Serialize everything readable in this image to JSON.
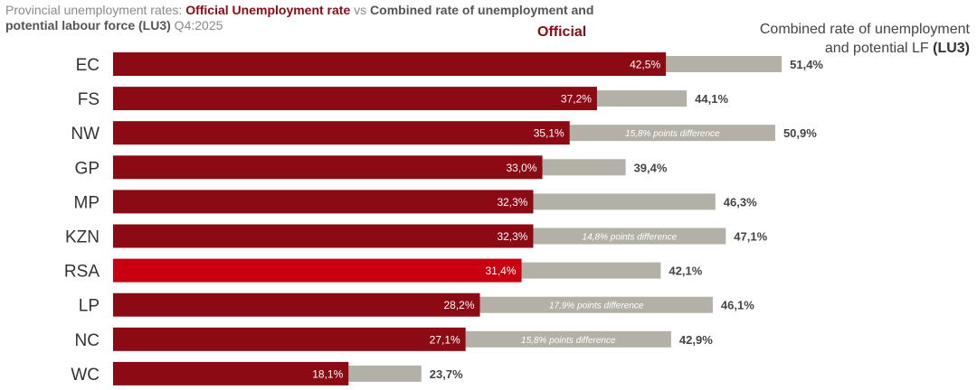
{
  "header": {
    "prefix": "Provincial unemployment rates: ",
    "official_label": "Official Unemployment rate",
    "vs": " vs ",
    "combined_label": "Combined rate of unemployment and potential labour force (LU3)",
    "period": " Q4:2025"
  },
  "legend": {
    "official": "Official",
    "combined_line1": "Combined rate of unemployment",
    "combined_line2_prefix": "and potential LF ",
    "combined_line2_bold": "(LU3)"
  },
  "colors": {
    "official": "#8b0a14",
    "official_highlight": "#c8000f",
    "combined": "#b3b0a8"
  },
  "chart_data": {
    "type": "bar",
    "orientation": "horizontal",
    "title": "Provincial unemployment rates: Official Unemployment rate vs Combined rate of unemployment and potential labour force (LU3) Q4:2025",
    "categories": [
      "EC",
      "FS",
      "NW",
      "GP",
      "MP",
      "KZN",
      "RSA",
      "LP",
      "NC",
      "WC"
    ],
    "highlight": "RSA",
    "series": [
      {
        "name": "Official",
        "values": [
          42.5,
          37.2,
          35.1,
          33.0,
          32.3,
          32.3,
          31.4,
          28.2,
          27.1,
          18.1
        ],
        "labels": [
          "42,5%",
          "37,2%",
          "35,1%",
          "33,0%",
          "32,3%",
          "32,3%",
          "31,4%",
          "28,2%",
          "27,1%",
          "18,1%"
        ]
      },
      {
        "name": "Combined rate of unemployment and potential LF (LU3)",
        "values": [
          51.4,
          44.1,
          50.9,
          39.4,
          46.3,
          47.1,
          42.1,
          46.1,
          42.9,
          23.7
        ],
        "labels": [
          "51,4%",
          "44,1%",
          "50,9%",
          "39,4%",
          "46,3%",
          "47,1%",
          "42,1%",
          "46,1%",
          "42,9%",
          "23,7%"
        ]
      }
    ],
    "annotations": [
      {
        "category": "NW",
        "text": "15,8% points difference"
      },
      {
        "category": "KZN",
        "text": "14,8% points difference"
      },
      {
        "category": "LP",
        "text": "17,9% points difference"
      },
      {
        "category": "NC",
        "text": "15,8% points difference"
      }
    ],
    "xlim": [
      0,
      60
    ]
  }
}
